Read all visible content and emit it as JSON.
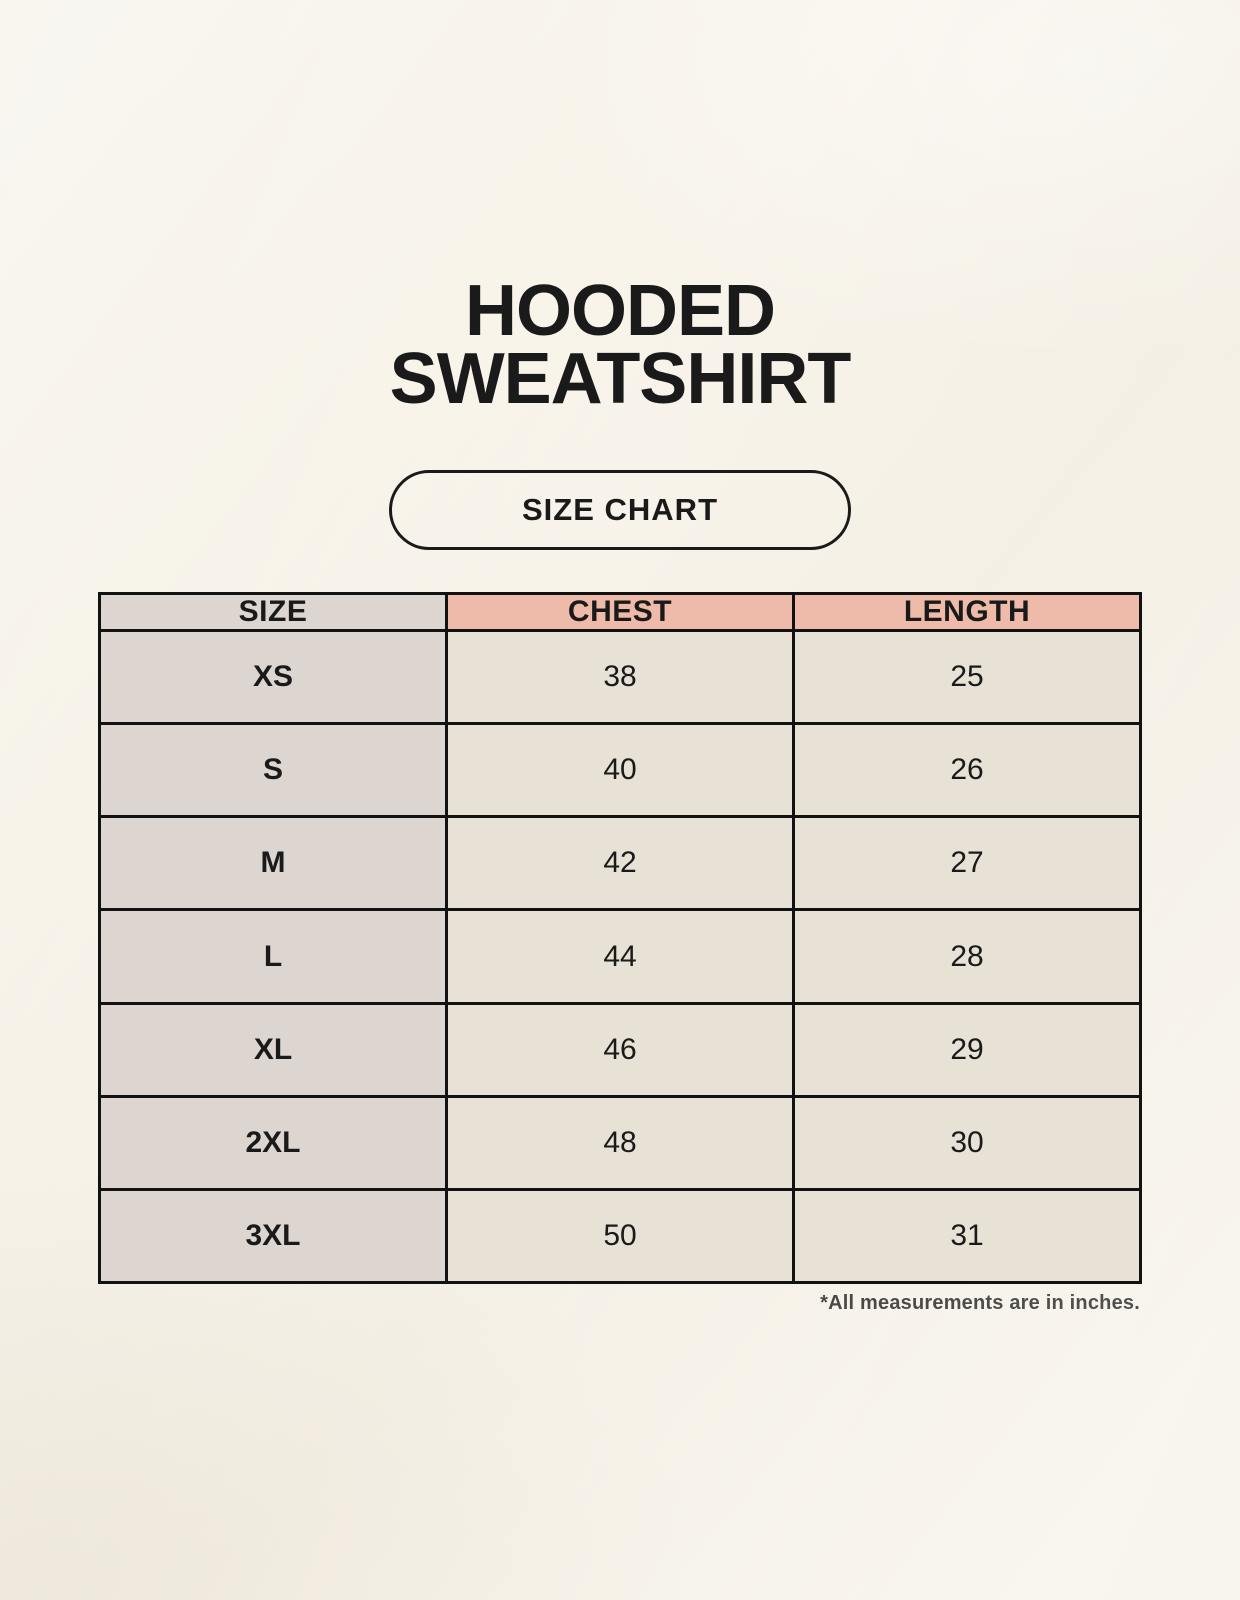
{
  "colors": {
    "page-bg": "#f7f3ea",
    "size-col-bg": "#ddd6d0",
    "header-accent-bg": "#eebaa9",
    "data-cell-bg": "#e8e1d5",
    "table-border": "#121212",
    "text": "#1a1a1a"
  },
  "header": {
    "title_line1": "HOODED",
    "title_line2": "SWEATSHIRT",
    "badge_label": "SIZE CHART"
  },
  "chart_data": {
    "type": "table",
    "columns": [
      "SIZE",
      "CHEST",
      "LENGTH"
    ],
    "rows": [
      [
        "XS",
        "38",
        "25"
      ],
      [
        "S",
        "40",
        "26"
      ],
      [
        "M",
        "42",
        "27"
      ],
      [
        "L",
        "44",
        "28"
      ],
      [
        "XL",
        "46",
        "29"
      ],
      [
        "2XL",
        "48",
        "30"
      ],
      [
        "3XL",
        "50",
        "31"
      ]
    ],
    "units": "inches"
  },
  "footnote": "*All measurements are in inches."
}
